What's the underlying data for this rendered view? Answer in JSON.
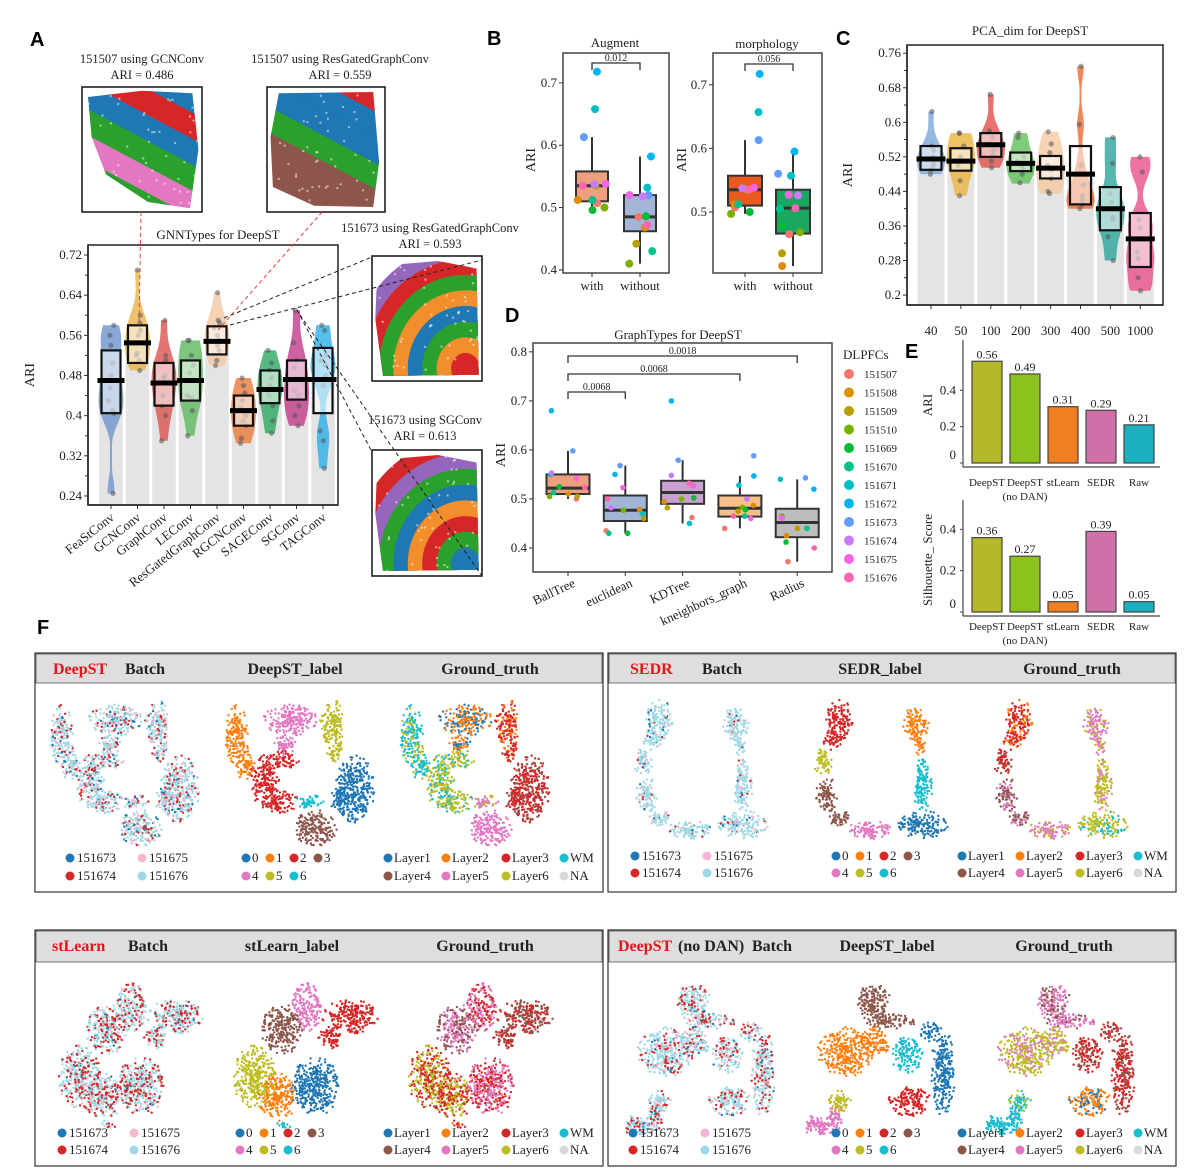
{
  "panel_labels": [
    "A",
    "B",
    "C",
    "D",
    "E",
    "F"
  ],
  "panel_a": {
    "insets": [
      {
        "title": "151507 using GCNConv",
        "ari": "ARI = 0.486"
      },
      {
        "title": "151507 using ResGatedGraphConv",
        "ari": "ARI = 0.559"
      },
      {
        "title": "151673 using ResGatedGraphConv",
        "ari": "ARI = 0.593"
      },
      {
        "title": "151673 using SGConv",
        "ari": "ARI = 0.613"
      }
    ]
  },
  "chart_data": [
    {
      "type": "violin",
      "title": "GNNTypes for DeepST",
      "ylabel": "ARI",
      "ylim": [
        0.222,
        0.74
      ],
      "yticks": [
        "0.24",
        "0.32",
        "0.4",
        "0.48",
        "0.56",
        "0.64",
        "0.72"
      ],
      "categories": [
        "FeaStConv",
        "GCNConv",
        "GraphConv",
        "LEConv",
        "ResGatedGraphConv",
        "RGCNConv",
        "SAGEConv",
        "SGConv",
        "TAGConv"
      ],
      "colors": [
        "#6b93cc",
        "#e9b44a",
        "#d9534f",
        "#5cb85c",
        "#f5c6a0",
        "#e8793c",
        "#2aa860",
        "#c23b8a",
        "#2aaee8"
      ],
      "stats": [
        {
          "min": 0.245,
          "q1": 0.405,
          "median": 0.47,
          "q3": 0.53,
          "max": 0.58
        },
        {
          "min": 0.49,
          "q1": 0.505,
          "median": 0.545,
          "q3": 0.58,
          "max": 0.69
        },
        {
          "min": 0.35,
          "q1": 0.42,
          "median": 0.465,
          "q3": 0.505,
          "max": 0.59
        },
        {
          "min": 0.36,
          "q1": 0.43,
          "median": 0.47,
          "q3": 0.51,
          "max": 0.55
        },
        {
          "min": 0.5,
          "q1": 0.522,
          "median": 0.548,
          "q3": 0.578,
          "max": 0.645
        },
        {
          "min": 0.345,
          "q1": 0.38,
          "median": 0.41,
          "q3": 0.44,
          "max": 0.475
        },
        {
          "min": 0.365,
          "q1": 0.425,
          "median": 0.452,
          "q3": 0.49,
          "max": 0.53
        },
        {
          "min": 0.38,
          "q1": 0.432,
          "median": 0.472,
          "q3": 0.51,
          "max": 0.61
        },
        {
          "min": 0.295,
          "q1": 0.405,
          "median": 0.472,
          "q3": 0.535,
          "max": 0.58
        }
      ],
      "points": [
        [
          0.58,
          0.56,
          0.54,
          0.505,
          0.48,
          0.455,
          0.43,
          0.41,
          0.405,
          0.245
        ],
        [
          0.69,
          0.6,
          0.585,
          0.57,
          0.56,
          0.545,
          0.525,
          0.52,
          0.51,
          0.49
        ],
        [
          0.59,
          0.52,
          0.51,
          0.48,
          0.475,
          0.465,
          0.44,
          0.42,
          0.4,
          0.35
        ],
        [
          0.55,
          0.55,
          0.52,
          0.5,
          0.485,
          0.47,
          0.44,
          0.435,
          0.41,
          0.36
        ],
        [
          0.645,
          0.59,
          0.585,
          0.575,
          0.56,
          0.55,
          0.54,
          0.53,
          0.51,
          0.5
        ],
        [
          0.475,
          0.46,
          0.445,
          0.43,
          0.415,
          0.4,
          0.39,
          0.38,
          0.355,
          0.345
        ],
        [
          0.53,
          0.505,
          0.49,
          0.475,
          0.46,
          0.45,
          0.44,
          0.42,
          0.39,
          0.365
        ],
        [
          0.61,
          0.545,
          0.51,
          0.495,
          0.475,
          0.45,
          0.44,
          0.42,
          0.4,
          0.38
        ],
        [
          0.58,
          0.57,
          0.52,
          0.51,
          0.5,
          0.48,
          0.46,
          0.37,
          0.35,
          0.295
        ]
      ]
    },
    {
      "type": "box",
      "title": "Augment",
      "ylabel": "ARI",
      "ylim": [
        0.395,
        0.748
      ],
      "yticks": [
        "0.4",
        "0.5",
        "0.6",
        "0.7"
      ],
      "categories": [
        "with",
        "without"
      ],
      "box_colors": [
        "#eea07e",
        "#a3b5d6"
      ],
      "stats": [
        {
          "whisker_low": 0.497,
          "q1": 0.51,
          "median": 0.535,
          "q3": 0.558,
          "whisker_high": 0.613
        },
        {
          "whisker_low": 0.41,
          "q1": 0.462,
          "median": 0.485,
          "q3": 0.52,
          "whisker_high": 0.582
        }
      ],
      "points": [
        [
          0.507,
          0.512,
          0.535,
          0.5,
          0.496,
          0.512,
          0.658,
          0.718,
          0.613,
          0.537,
          0.538,
          0.535
        ],
        [
          0.485,
          0.468,
          0.442,
          0.41,
          0.486,
          0.43,
          0.532,
          0.582,
          0.52,
          0.518,
          0.52,
          0.472
        ]
      ],
      "comparison": {
        "label": "0.012",
        "pair": [
          "with",
          "without"
        ]
      }
    },
    {
      "type": "box",
      "title": "morphology",
      "ylabel": "ARI",
      "ylim": [
        0.404,
        0.75
      ],
      "yticks": [
        "0.5",
        "0.6",
        "0.7"
      ],
      "categories": [
        "with",
        "without"
      ],
      "box_colors": [
        "#ea5a1e",
        "#1aa860"
      ],
      "stats": [
        {
          "whisker_low": 0.497,
          "q1": 0.51,
          "median": 0.535,
          "q3": 0.557,
          "whisker_high": 0.613
        },
        {
          "whisker_low": 0.415,
          "q1": 0.466,
          "median": 0.506,
          "q3": 0.535,
          "whisker_high": 0.595
        }
      ],
      "points": [
        [
          0.507,
          0.512,
          0.535,
          0.497,
          0.5,
          0.512,
          0.657,
          0.717,
          0.613,
          0.537,
          0.538,
          0.535
        ],
        [
          0.465,
          0.415,
          0.435,
          0.468,
          0.478,
          0.505,
          0.557,
          0.595,
          0.56,
          0.526,
          0.527,
          0.506
        ]
      ],
      "comparison": {
        "label": "0.056",
        "pair": [
          "with",
          "without"
        ]
      }
    },
    {
      "type": "violin",
      "title": "PCA_dim for DeepST",
      "ylabel": "ARI",
      "ylim": [
        0.177,
        0.779
      ],
      "yticks": [
        "0.2",
        "0.28",
        "0.36",
        "0.44",
        "0.52",
        "0.6",
        "0.68",
        "0.76"
      ],
      "categories": [
        "40",
        "50",
        "100",
        "200",
        "300",
        "400",
        "500",
        "1000"
      ],
      "colors": [
        "#7aa6d9",
        "#e8b440",
        "#e0504a",
        "#5fbf5a",
        "#f5c9a0",
        "#e86a30",
        "#2aa59a",
        "#e8508a"
      ],
      "stats": [
        {
          "min": 0.48,
          "q1": 0.49,
          "median": 0.515,
          "q3": 0.545,
          "max": 0.625
        },
        {
          "min": 0.43,
          "q1": 0.488,
          "median": 0.51,
          "q3": 0.54,
          "max": 0.575
        },
        {
          "min": 0.495,
          "q1": 0.52,
          "median": 0.548,
          "q3": 0.575,
          "max": 0.665
        },
        {
          "min": 0.458,
          "q1": 0.487,
          "median": 0.505,
          "q3": 0.53,
          "max": 0.575
        },
        {
          "min": 0.435,
          "q1": 0.47,
          "median": 0.494,
          "q3": 0.522,
          "max": 0.578
        },
        {
          "min": 0.4,
          "q1": 0.41,
          "median": 0.48,
          "q3": 0.545,
          "max": 0.73
        },
        {
          "min": 0.28,
          "q1": 0.35,
          "median": 0.4,
          "q3": 0.45,
          "max": 0.565
        },
        {
          "min": 0.21,
          "q1": 0.265,
          "median": 0.33,
          "q3": 0.39,
          "max": 0.52
        }
      ],
      "points": [
        [
          0.625,
          0.545,
          0.535,
          0.52,
          0.51,
          0.5,
          0.49,
          0.48
        ],
        [
          0.575,
          0.575,
          0.545,
          0.52,
          0.51,
          0.5,
          0.465,
          0.43
        ],
        [
          0.665,
          0.58,
          0.565,
          0.55,
          0.535,
          0.525,
          0.51,
          0.495
        ],
        [
          0.575,
          0.565,
          0.52,
          0.51,
          0.5,
          0.49,
          0.48,
          0.46
        ],
        [
          0.578,
          0.55,
          0.53,
          0.5,
          0.49,
          0.47,
          0.44,
          0.435
        ],
        [
          0.73,
          0.595,
          0.5,
          0.455,
          0.43,
          0.42,
          0.41,
          0.4
        ],
        [
          0.565,
          0.505,
          0.435,
          0.415,
          0.38,
          0.375,
          0.335,
          0.28
        ],
        [
          0.52,
          0.485,
          0.375,
          0.355,
          0.3,
          0.285,
          0.24,
          0.21
        ]
      ]
    },
    {
      "type": "box",
      "title": "GraphTypes for DeepST",
      "ylabel": "ARI",
      "ylim": [
        0.351,
        0.818
      ],
      "yticks": [
        "0.4",
        "0.5",
        "0.6",
        "0.7",
        "0.8"
      ],
      "categories": [
        "BallTree",
        "euclidean",
        "KDTree",
        "kneighbors_graph",
        "Radius"
      ],
      "box_colors": [
        "#eea07e",
        "#a3b5d6",
        "#c9a0d0",
        "#f7c08a",
        "#bdbdbd"
      ],
      "stats": [
        {
          "whisker_low": 0.5,
          "q1": 0.51,
          "median": 0.522,
          "q3": 0.55,
          "whisker_high": 0.598
        },
        {
          "whisker_low": 0.43,
          "q1": 0.455,
          "median": 0.477,
          "q3": 0.507,
          "whisker_high": 0.568
        },
        {
          "whisker_low": 0.45,
          "q1": 0.49,
          "median": 0.513,
          "q3": 0.537,
          "whisker_high": 0.579
        },
        {
          "whisker_low": 0.44,
          "q1": 0.464,
          "median": 0.481,
          "q3": 0.507,
          "whisker_high": 0.547
        },
        {
          "whisker_low": 0.372,
          "q1": 0.422,
          "median": 0.452,
          "q3": 0.48,
          "whisker_high": 0.54
        }
      ],
      "points": [
        [
          0.5,
          0.51,
          0.505,
          0.505,
          0.525,
          0.513,
          0.55,
          0.68,
          0.598,
          0.553,
          0.542,
          0.523
        ],
        [
          0.435,
          0.478,
          0.46,
          0.477,
          0.43,
          0.43,
          0.47,
          0.55,
          0.568,
          0.482,
          0.523,
          0.5
        ],
        [
          0.462,
          0.494,
          0.482,
          0.5,
          0.502,
          0.527,
          0.45,
          0.7,
          0.579,
          0.548,
          0.527,
          0.532
        ],
        [
          0.44,
          0.487,
          0.475,
          0.483,
          0.478,
          0.465,
          0.528,
          0.547,
          0.588,
          0.5,
          0.46,
          0.465
        ],
        [
          0.372,
          0.425,
          0.44,
          0.465,
          0.412,
          0.44,
          0.54,
          0.52,
          0.543,
          0.46,
          0.462,
          0.4
        ]
      ],
      "comparisons": [
        {
          "label": "0.0018",
          "pair": [
            "BallTree",
            "Radius"
          ]
        },
        {
          "label": "0.0068",
          "pair": [
            "BallTree",
            "kneighbors_graph"
          ]
        },
        {
          "label": "0.0068",
          "pair": [
            "BallTree",
            "euclidean"
          ]
        }
      ],
      "legend": {
        "title": "DLPFCs",
        "position": "right",
        "entries": [
          "151507",
          "151508",
          "151509",
          "151510",
          "151669",
          "151670",
          "151671",
          "151672",
          "151673",
          "151674",
          "151675",
          "151676"
        ],
        "colors": [
          "#F8766D",
          "#DE8C00",
          "#B79F00",
          "#7CAE00",
          "#00BA38",
          "#00C08B",
          "#00BFC4",
          "#00B4F0",
          "#619CFF",
          "#C77CFF",
          "#F564E3",
          "#FF64B0"
        ]
      }
    },
    {
      "type": "bar",
      "ylabel": "ARI",
      "ylim": [
        0,
        0.677
      ],
      "yticks": [
        "0",
        "0.2",
        "0.4"
      ],
      "categories": [
        [
          "DeepST",
          ""
        ],
        [
          "DeepST",
          "(no DAN)"
        ],
        [
          "stLearn",
          ""
        ],
        [
          "SEDR",
          ""
        ],
        [
          "Raw",
          ""
        ]
      ],
      "values": [
        0.56,
        0.49,
        0.31,
        0.29,
        0.21
      ],
      "data_labels": [
        "0.56",
        "0.49",
        "0.31",
        "0.29",
        "0.21"
      ],
      "colors": [
        "#b5b82a",
        "#8cc21e",
        "#f07f22",
        "#d070a8",
        "#1ab0c0"
      ]
    },
    {
      "type": "bar",
      "ylabel": "Silhouette_ Score",
      "ylim": [
        0,
        0.542
      ],
      "yticks": [
        "0",
        "0.2",
        "0.4"
      ],
      "categories": [
        [
          "DeepST",
          ""
        ],
        [
          "DeepST",
          "(no DAN)"
        ],
        [
          "stLearn",
          ""
        ],
        [
          "SEDR",
          ""
        ],
        [
          "Raw",
          ""
        ]
      ],
      "values": [
        0.36,
        0.27,
        0.05,
        0.39,
        0.05
      ],
      "data_labels": [
        "0.36",
        "0.27",
        "0.05",
        "0.39",
        "0.05"
      ],
      "colors": [
        "#b5b82a",
        "#8cc21e",
        "#f07f22",
        "#d070a8",
        "#1ab0c0"
      ]
    }
  ],
  "panel_f": {
    "accent_color": "#e8141c",
    "panels": [
      {
        "method": "DeepST",
        "method_suffix": "",
        "columns": [
          "Batch",
          "DeepST_label",
          "Ground_truth"
        ]
      },
      {
        "method": "SEDR",
        "method_suffix": "",
        "columns": [
          "Batch",
          "SEDR_label",
          "Ground_truth"
        ]
      },
      {
        "method": "stLearn",
        "method_suffix": "",
        "columns": [
          "Batch",
          "stLearn_label",
          "Ground_truth"
        ]
      },
      {
        "method": "DeepST",
        "method_suffix": "(no DAN)",
        "columns": [
          "Batch",
          "DeepST_label",
          "Ground_truth"
        ]
      }
    ],
    "batch_legend": {
      "entries": [
        "151673",
        "151674",
        "151675",
        "151676"
      ],
      "colors": [
        "#1f77b4",
        "#d62728",
        "#f4b6d2",
        "#9edae5"
      ]
    },
    "cluster_legend": {
      "entries": [
        "0",
        "1",
        "2",
        "3",
        "4",
        "5",
        "6"
      ],
      "colors": [
        "#1f77b4",
        "#ff7f0e",
        "#d62728",
        "#8c564b",
        "#e377c2",
        "#bcbd22",
        "#17becf"
      ]
    },
    "layer_legend": {
      "entries": [
        "Layer1",
        "Layer2",
        "Layer3",
        "WM",
        "Layer4",
        "Layer5",
        "Layer6",
        "NA"
      ],
      "colors": [
        "#1f77b4",
        "#ff7f0e",
        "#d62728",
        "#17becf",
        "#8c564b",
        "#e377c2",
        "#bcbd22",
        "#d9d9d9"
      ]
    }
  }
}
